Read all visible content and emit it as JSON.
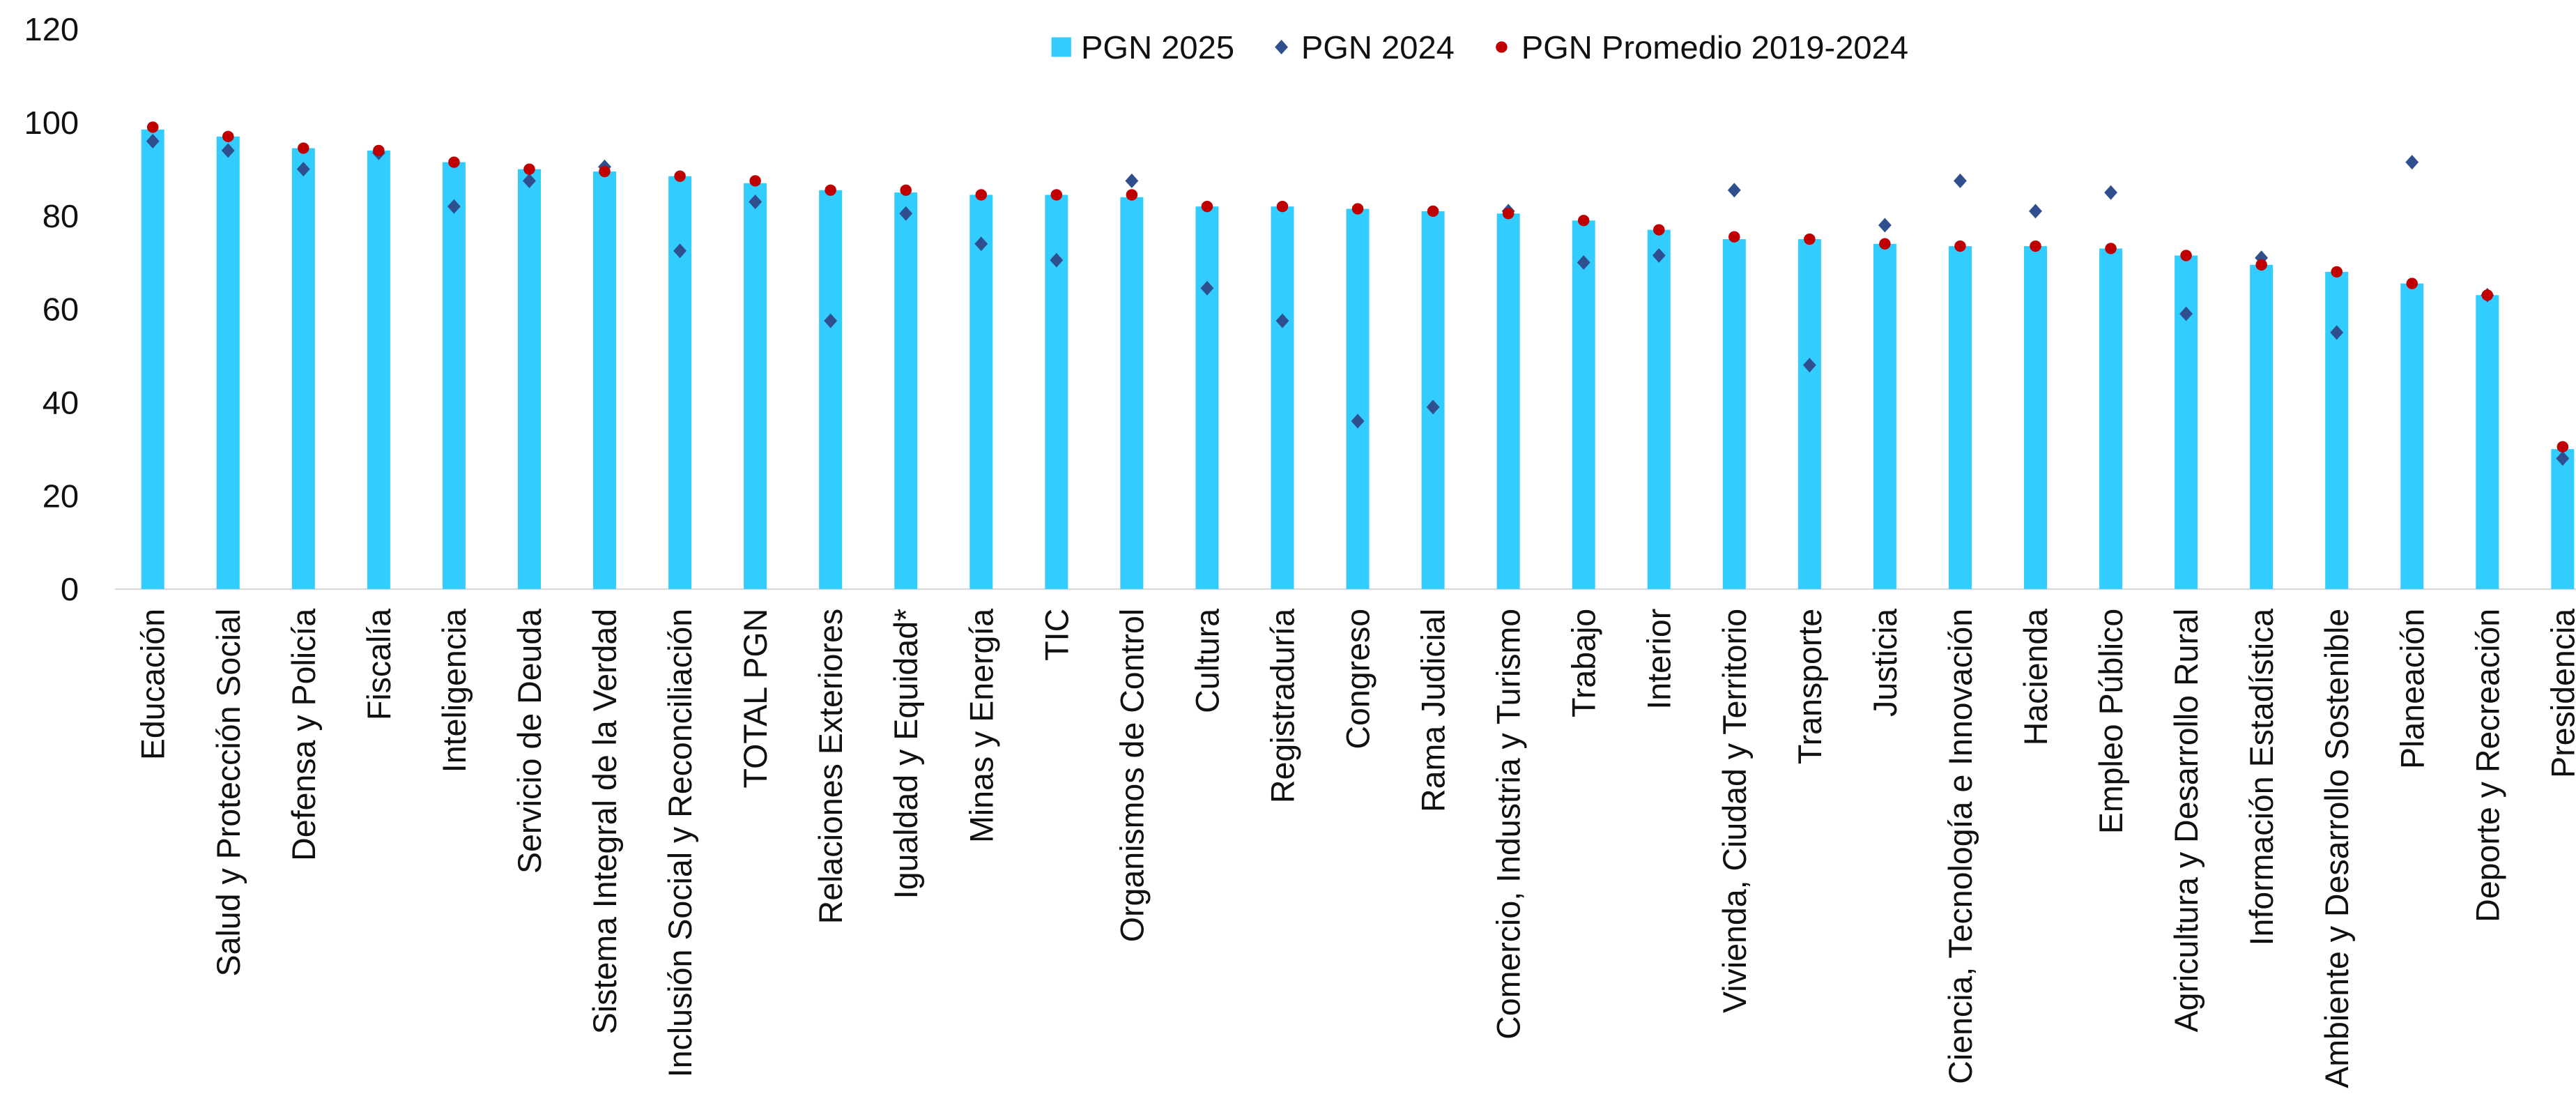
{
  "chart_data": {
    "type": "bar",
    "categories": [
      "Educación",
      "Salud y Protección Social",
      "Defensa y Policía",
      "Fiscalía",
      "Inteligencia",
      "Servicio de Deuda",
      "Sistema Integral de la Verdad",
      "Inclusión Social y Reconciliación",
      "TOTAL PGN",
      "Relaciones Exteriores",
      "Igualdad y Equidad*",
      "Minas y Energía",
      "TIC",
      "Organismos de Control",
      "Cultura",
      "Registraduría",
      "Congreso",
      "Rama Judicial",
      "Comercio, Industria y Turismo",
      "Trabajo",
      "Interior",
      "Vivienda, Ciudad y Territorio",
      "Transporte",
      "Justicia",
      "Ciencia, Tecnología e Innovación",
      "Hacienda",
      "Empleo Público",
      "Agricultura y Desarrollo Rural",
      "Información Estadística",
      "Ambiente y Desarrollo Sostenible",
      "Planeación",
      "Deporte y Recreación",
      "Presidencia"
    ],
    "series": [
      {
        "name": "PGN 2025",
        "color": "#33ccff",
        "marker": "bar",
        "values": [
          98.5,
          97,
          94.5,
          94,
          91.5,
          90,
          89.5,
          88.5,
          87,
          85.5,
          85,
          84.5,
          84.5,
          84,
          82,
          82,
          81.5,
          81,
          80.5,
          79,
          77,
          75,
          75,
          74,
          73.5,
          73.5,
          73,
          71.5,
          69.5,
          68,
          65.5,
          63,
          30
        ]
      },
      {
        "name": "PGN 2024",
        "color": "#2f4f8f",
        "marker": "diamond",
        "values": [
          96,
          94,
          90,
          93.5,
          82,
          87.5,
          90.5,
          72.5,
          83,
          57.5,
          80.5,
          74,
          70.5,
          87.5,
          64.5,
          57.5,
          36,
          39,
          81,
          70,
          71.5,
          85.5,
          48,
          78,
          87.5,
          81,
          85,
          59,
          71,
          55,
          91.5,
          63,
          28
        ]
      },
      {
        "name": "PGN Promedio 2019-2024",
        "color": "#c00000",
        "marker": "circle",
        "values": [
          99,
          97,
          94.5,
          94,
          91.5,
          90,
          89.5,
          88.5,
          87.5,
          85.5,
          85.5,
          84.5,
          84.5,
          84.5,
          82,
          82,
          81.5,
          81,
          80.5,
          79,
          77,
          75.5,
          75,
          74,
          73.5,
          73.5,
          73,
          71.5,
          69.5,
          68,
          65.5,
          63,
          30.5
        ]
      }
    ],
    "ylim": [
      0,
      120
    ],
    "yticks": [
      0,
      20,
      40,
      60,
      80,
      100,
      120
    ],
    "grid": false,
    "legend": "top"
  }
}
